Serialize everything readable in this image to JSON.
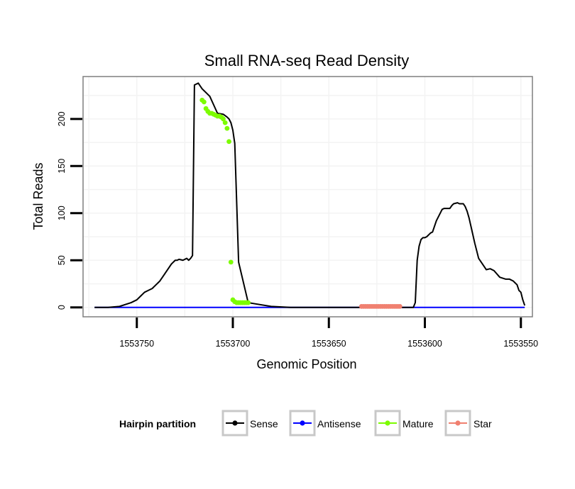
{
  "chart_data": {
    "type": "line",
    "title": "Small RNA-seq Read Density",
    "xlabel": "Genomic Position",
    "ylabel": "Total Reads",
    "xlim": [
      1553778,
      1553544
    ],
    "xreversed": true,
    "ylim": [
      -10,
      245
    ],
    "xticks": [
      1553750,
      1553700,
      1553650,
      1553600,
      1553550
    ],
    "xtick_labels": [
      "1553750",
      "1553700",
      "1553650",
      "1553600",
      "1553550"
    ],
    "yticks": [
      0,
      50,
      100,
      150,
      200
    ],
    "ytick_labels": [
      "0",
      "50",
      "100",
      "150",
      "200"
    ],
    "grid": true,
    "legend": {
      "title": "Hairpin partition",
      "placement": "bottom",
      "entries": [
        {
          "name": "Sense",
          "color": "#000000"
        },
        {
          "name": "Antisense",
          "color": "#0000ff"
        },
        {
          "name": "Mature",
          "color": "#7cfc00"
        },
        {
          "name": "Star",
          "color": "#f08070"
        }
      ]
    },
    "series": [
      {
        "name": "Sense",
        "color": "#000000",
        "style": "line",
        "x": [
          1553772,
          1553765,
          1553759,
          1553756,
          1553753,
          1553750,
          1553748,
          1553746,
          1553744,
          1553742,
          1553740,
          1553738,
          1553736,
          1553734,
          1553732,
          1553730,
          1553729,
          1553728,
          1553726,
          1553724,
          1553723,
          1553722,
          1553721,
          1553720,
          1553719,
          1553718,
          1553717,
          1553716,
          1553712,
          1553710,
          1553708,
          1553705,
          1553703,
          1553702,
          1553701,
          1553700,
          1553699,
          1553697,
          1553692,
          1553680,
          1553670,
          1553660,
          1553650,
          1553640,
          1553630,
          1553620,
          1553612,
          1553606,
          1553605,
          1553604,
          1553603,
          1553602,
          1553601,
          1553600,
          1553599,
          1553598,
          1553597,
          1553596,
          1553594,
          1553591,
          1553590,
          1553589,
          1553587,
          1553586,
          1553585,
          1553583,
          1553582,
          1553580,
          1553579,
          1553578,
          1553577,
          1553576,
          1553574,
          1553573,
          1553572,
          1553570,
          1553568,
          1553566,
          1553564,
          1553561,
          1553558,
          1553557,
          1553556,
          1553554,
          1553552,
          1553551,
          1553550,
          1553549,
          1553548
        ],
        "y": [
          0,
          0,
          1,
          3,
          5,
          8,
          12,
          16,
          18,
          20,
          24,
          28,
          34,
          40,
          46,
          50,
          50,
          51,
          50,
          52,
          50,
          52,
          55,
          236,
          237,
          238,
          235,
          232,
          224,
          215,
          206,
          205,
          202,
          200,
          196,
          188,
          174,
          48,
          5,
          1,
          0,
          0,
          0,
          0,
          0,
          0,
          0,
          0,
          5,
          50,
          65,
          72,
          74,
          74,
          75,
          77,
          79,
          80,
          92,
          104,
          105,
          105,
          105,
          108,
          110,
          111,
          110,
          110,
          107,
          102,
          95,
          86,
          68,
          60,
          52,
          46,
          40,
          41,
          39,
          32,
          30,
          30,
          30,
          28,
          24,
          18,
          16,
          8,
          2
        ]
      },
      {
        "name": "Antisense",
        "color": "#0000ff",
        "style": "line",
        "x": [
          1553772,
          1553548
        ],
        "y": [
          0,
          0
        ]
      },
      {
        "name": "Mature",
        "color": "#7cfc00",
        "style": "points",
        "x": [
          1553716,
          1553715,
          1553714,
          1553713,
          1553712,
          1553711,
          1553710,
          1553709,
          1553708,
          1553707,
          1553706,
          1553705,
          1553704,
          1553703,
          1553702,
          1553701,
          1553700,
          1553699,
          1553698,
          1553697,
          1553696,
          1553695,
          1553694,
          1553693,
          1553692
        ],
        "y": [
          220,
          218,
          211,
          208,
          206,
          206,
          205,
          204,
          203,
          203,
          202,
          200,
          196,
          190,
          176,
          48,
          8,
          6,
          5,
          5,
          5,
          5,
          5,
          5,
          5
        ]
      },
      {
        "name": "Star",
        "color": "#f08070",
        "style": "points",
        "x": [
          1553633,
          1553632,
          1553631,
          1553630,
          1553629,
          1553628,
          1553627,
          1553626,
          1553625,
          1553624,
          1553623,
          1553622,
          1553621,
          1553620,
          1553619,
          1553618,
          1553617,
          1553616,
          1553615,
          1553614,
          1553613
        ],
        "y": [
          1,
          1,
          1,
          1,
          1,
          1,
          1,
          1,
          1,
          1,
          1,
          1,
          1,
          1,
          1,
          1,
          1,
          1,
          1,
          1,
          1
        ]
      }
    ]
  }
}
